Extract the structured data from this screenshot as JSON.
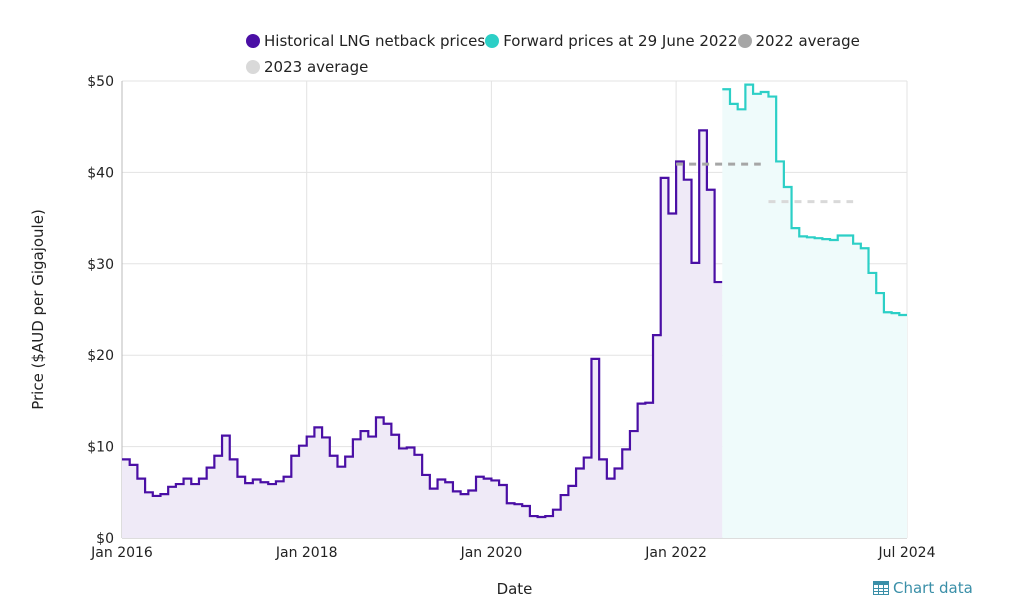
{
  "chart_data": {
    "type": "line",
    "step": true,
    "title": "",
    "xlabel": "Date",
    "ylabel": "Price ($AUD per Gigajoule)",
    "ylim": [
      0,
      50
    ],
    "xlim": [
      "2016-01",
      "2024-07"
    ],
    "grid": true,
    "legend_placement": "top",
    "x_ticks": [
      "Jan 2016",
      "Jan 2018",
      "Jan 2020",
      "Jan 2022",
      "Jul 2024"
    ],
    "y_ticks": [
      "$0",
      "$10",
      "$20",
      "$30",
      "$40",
      "$50"
    ],
    "y_tick_values": [
      0,
      10,
      20,
      30,
      40,
      50
    ],
    "series": [
      {
        "name": "Historical LNG netback prices",
        "color": "#4a0fa5",
        "fill": "#efeaf7",
        "start": "2016-01",
        "values": [
          8.6,
          8.0,
          6.5,
          5.0,
          4.6,
          4.8,
          5.6,
          5.9,
          6.5,
          5.9,
          6.5,
          7.7,
          9.0,
          11.2,
          8.6,
          6.7,
          6.0,
          6.4,
          6.1,
          5.9,
          6.2,
          6.7,
          9.0,
          10.1,
          11.1,
          12.1,
          11.0,
          9.0,
          7.8,
          8.9,
          10.8,
          11.7,
          11.1,
          13.2,
          12.5,
          11.3,
          9.8,
          9.9,
          9.1,
          6.9,
          5.4,
          6.4,
          6.1,
          5.1,
          4.8,
          5.2,
          6.7,
          6.5,
          6.3,
          5.8,
          3.8,
          3.7,
          3.5,
          2.4,
          2.3,
          2.4,
          3.1,
          4.7,
          5.7,
          7.6,
          8.8,
          19.6,
          8.6,
          6.5,
          7.6,
          9.7,
          11.7,
          14.7,
          14.8,
          22.2,
          39.4,
          35.5,
          41.2,
          39.2,
          30.1,
          44.6,
          38.1,
          28.0
        ]
      },
      {
        "name": "Forward prices at 29 June 2022",
        "color": "#2ccfc6",
        "fill": "#effbfb",
        "start": "2022-07",
        "values": [
          49.1,
          47.5,
          46.9,
          49.6,
          48.6,
          48.8,
          48.3,
          41.2,
          38.4,
          33.9,
          33.0,
          32.9,
          32.8,
          32.7,
          32.6,
          33.1,
          33.1,
          32.2,
          31.7,
          29.0,
          26.8,
          24.7,
          24.6,
          24.4
        ]
      },
      {
        "name": "2022 average",
        "color": "#a6a6a6",
        "dashed": true,
        "start": "2022-01",
        "end": "2022-12",
        "value": 40.9
      },
      {
        "name": "2023 average",
        "color": "#d9d9d9",
        "dashed": true,
        "start": "2023-01",
        "end": "2023-12",
        "value": 36.8
      }
    ]
  },
  "chart_data_link": {
    "label": "Chart data",
    "icon": "table-icon"
  }
}
